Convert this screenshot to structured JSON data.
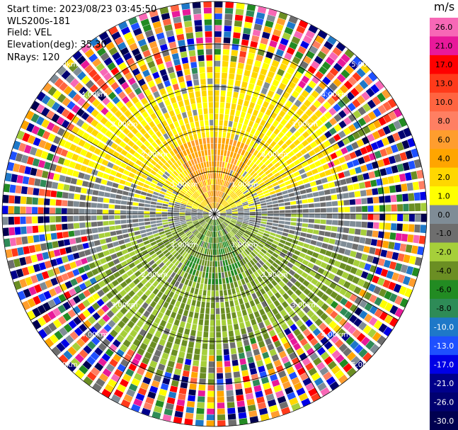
{
  "header": {
    "start_time": "Start time: 2023/08/23 03:45:50",
    "instrument": "WLS200s-181",
    "field": "Field: VEL",
    "elevation": "Elevation(deg): 35.30",
    "nrays": "NRays: 120"
  },
  "chart_data": {
    "type": "ppi-polar",
    "field": "VEL",
    "unit": "m/s",
    "nrays": 120,
    "range_rings_km": [
      1,
      2,
      3,
      4,
      5
    ],
    "range_labels": [
      "1.00km",
      "2.00km",
      "3.00km",
      "4.00km",
      "5.00km"
    ],
    "colorbar": {
      "unit": "m/s",
      "tick_labels": [
        "26.0",
        "21.0",
        "17.0",
        "13.0",
        "10.0",
        "8.0",
        "6.0",
        "4.0",
        "2.0",
        "1.0",
        "0.0",
        "-1.0",
        "-2.0",
        "-4.0",
        "-6.0",
        "-8.0",
        "-10.0",
        "-13.0",
        "-17.0",
        "-21.0",
        "-26.0",
        "-30.0"
      ],
      "bins": [
        {
          "color": "#f768b6"
        },
        {
          "color": "#e8199a"
        },
        {
          "color": "#ff0000"
        },
        {
          "color": "#ff3a1a"
        },
        {
          "color": "#ff6440"
        },
        {
          "color": "#ff7f62"
        },
        {
          "color": "#ff9d2e"
        },
        {
          "color": "#ffa500"
        },
        {
          "color": "#ffd700"
        },
        {
          "color": "#ffff00"
        },
        {
          "color": "#7f8c96"
        },
        {
          "color": "#6e6e6e"
        },
        {
          "color": "#a6cf3a"
        },
        {
          "color": "#6b8e23"
        },
        {
          "color": "#228b22"
        },
        {
          "color": "#2e8b57"
        },
        {
          "color": "#1e78c8"
        },
        {
          "color": "#1e50ff"
        },
        {
          "color": "#0000e6"
        },
        {
          "color": "#00008b"
        },
        {
          "color": "#000070"
        },
        {
          "color": "#000050"
        }
      ]
    },
    "sectors": {
      "north": "positive, yellow/orange",
      "south": "negative, green",
      "east_west": "near zero, gray",
      "outer_range": "noise"
    }
  }
}
